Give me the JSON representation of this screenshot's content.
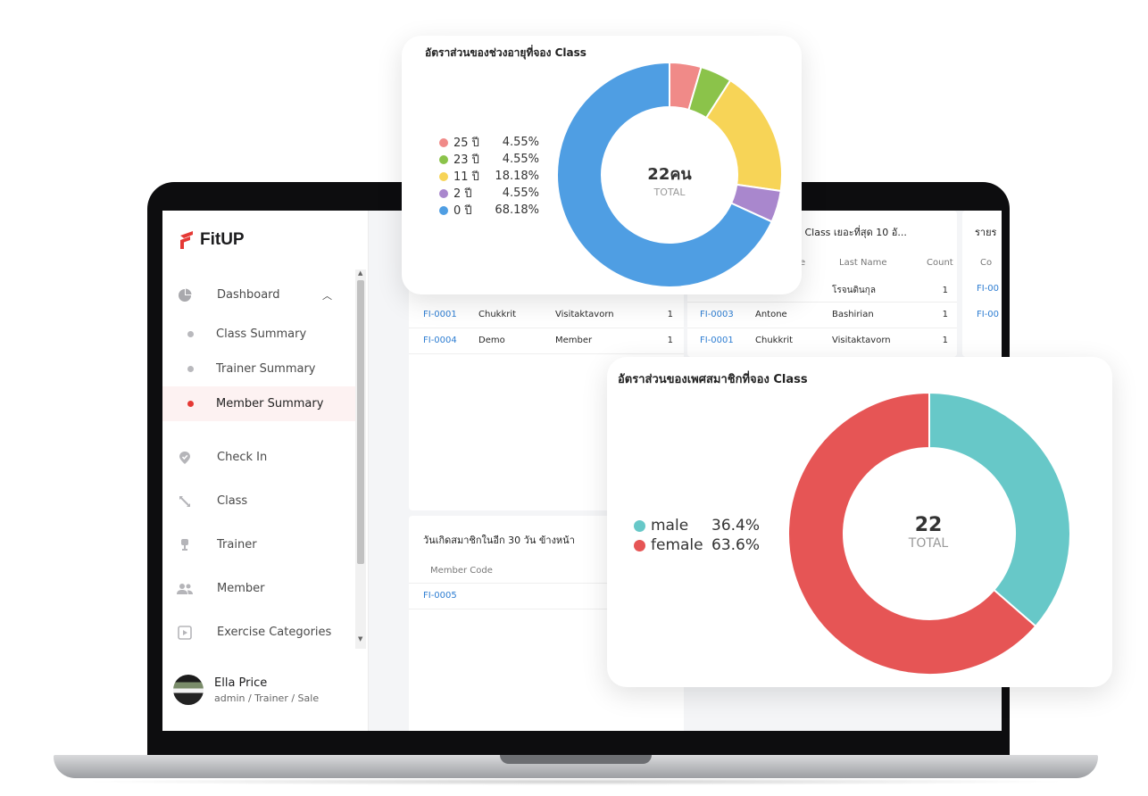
{
  "brand": {
    "name": "FitUP",
    "accent": "#e53935"
  },
  "sidebar": {
    "dashboard_label": "Dashboard",
    "sub_items": [
      {
        "label": "Class Summary",
        "active": false
      },
      {
        "label": "Trainer Summary",
        "active": false
      },
      {
        "label": "Member Summary",
        "active": true
      }
    ],
    "items": [
      {
        "label": "Check In",
        "icon": "check-in-icon"
      },
      {
        "label": "Class",
        "icon": "class-icon"
      },
      {
        "label": "Trainer",
        "icon": "trainer-icon"
      },
      {
        "label": "Member",
        "icon": "member-icon"
      },
      {
        "label": "Exercise Categories",
        "icon": "exercise-icon"
      }
    ]
  },
  "user": {
    "name": "Ella Price",
    "role": "admin / Trainer / Sale"
  },
  "top_table": {
    "rows": [
      {
        "code": "FI-0001",
        "first": "Chukkrit",
        "last": "Visitaktavorn",
        "count": "1"
      },
      {
        "code": "FI-0004",
        "first": "Demo",
        "last": "Member",
        "count": "1"
      }
    ]
  },
  "top_member_table": {
    "title": "อง Class เยอะที่สุด 10 อั...",
    "headers": {
      "first_partial": "e",
      "last": "Last Name",
      "count": "Count"
    },
    "rows": [
      {
        "code": "",
        "first": "",
        "last": "โรจนดินกุล",
        "count": "1"
      },
      {
        "code": "FI-0003",
        "first": "Antone",
        "last": "Bashirian",
        "count": "1"
      },
      {
        "code": "FI-0001",
        "first": "Chukkrit",
        "last": "Visitaktavorn",
        "count": "1"
      }
    ]
  },
  "right_partial_table": {
    "title": "รายร",
    "header": "Co",
    "codes": [
      "FI-00",
      "FI-00"
    ]
  },
  "birthday_table": {
    "title": "วันเกิดสมาชิกในอีก 30 วัน ข้างหน้า",
    "header": "Member Code",
    "rows": [
      "FI-0005"
    ]
  },
  "age_chart": {
    "title": "อัตราส่วนของช่วงอายุที่จอง Class",
    "center_value": "22คน",
    "center_label": "TOTAL",
    "legend": [
      {
        "label": "25 ปี",
        "pct": "4.55%",
        "color": "#f08a88"
      },
      {
        "label": "23 ปี",
        "pct": "4.55%",
        "color": "#8bc34a"
      },
      {
        "label": "11 ปี",
        "pct": "18.18%",
        "color": "#f7d457"
      },
      {
        "label": "2 ปี",
        "pct": "4.55%",
        "color": "#a987cd"
      },
      {
        "label": "0 ปี",
        "pct": "68.18%",
        "color": "#4f9ee3"
      }
    ]
  },
  "gender_chart": {
    "title": "อัตราส่วนของเพศสมาชิกที่จอง Class",
    "center_value": "22",
    "center_label": "TOTAL",
    "legend": [
      {
        "label": "male",
        "pct": "36.4%",
        "color": "#67c8c8"
      },
      {
        "label": "female",
        "pct": "63.6%",
        "color": "#e65555"
      }
    ]
  },
  "chart_data": [
    {
      "type": "pie",
      "title": "อัตราส่วนของช่วงอายุที่จอง Class",
      "categories": [
        "25 ปี",
        "23 ปี",
        "11 ปี",
        "2 ปี",
        "0 ปี"
      ],
      "values": [
        4.55,
        4.55,
        18.18,
        4.55,
        68.18
      ],
      "colors": [
        "#f08a88",
        "#8bc34a",
        "#f7d457",
        "#a987cd",
        "#4f9ee3"
      ],
      "donut": true
    },
    {
      "type": "pie",
      "title": "อัตราส่วนของเพศสมาชิกที่จอง Class",
      "categories": [
        "male",
        "female"
      ],
      "values": [
        36.4,
        63.6
      ],
      "colors": [
        "#67c8c8",
        "#e65555"
      ],
      "donut": true
    }
  ]
}
